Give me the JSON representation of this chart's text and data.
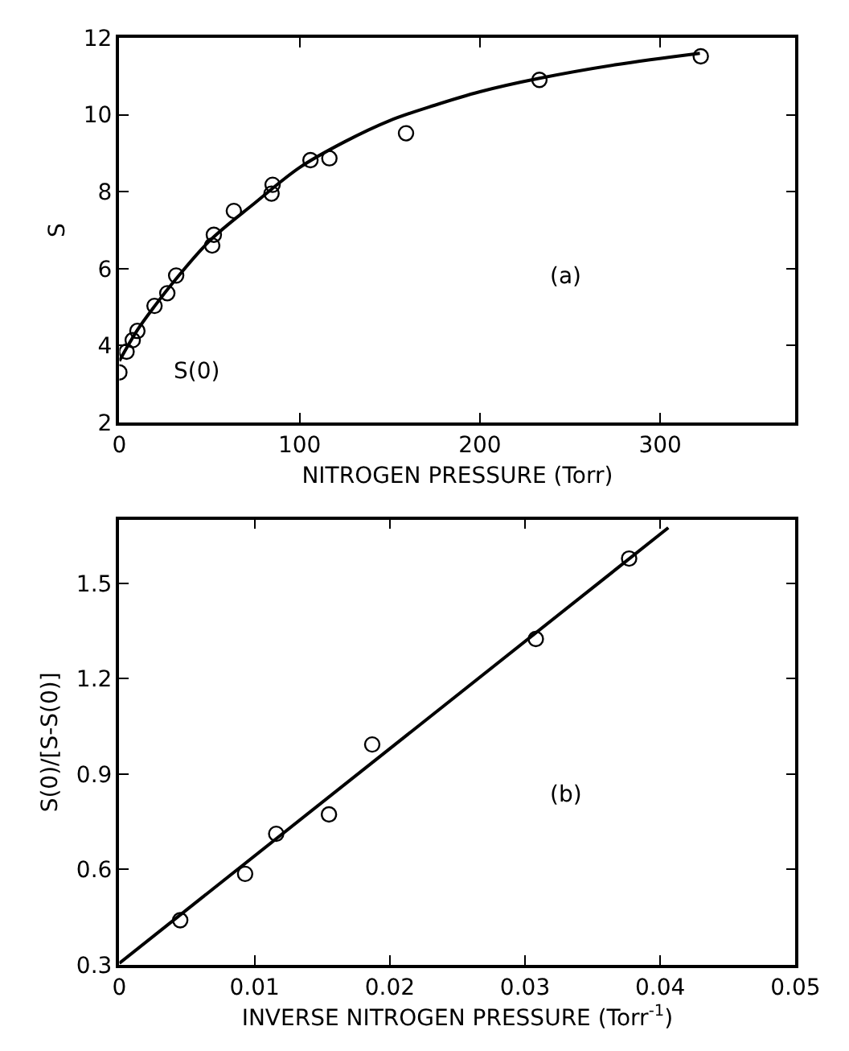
{
  "chart_data": [
    {
      "type": "scatter",
      "xlabel": "NITROGEN PRESSURE (Torr)",
      "ylabel": "S",
      "xlim": [
        0,
        375
      ],
      "ylim": [
        2,
        12
      ],
      "xticks": [
        0,
        100,
        200,
        300
      ],
      "yticks": [
        2,
        4,
        6,
        8,
        10,
        12
      ],
      "marker": "circle",
      "annotations": [
        {
          "text": "S(0)",
          "x": 0,
          "y": 3.3
        },
        "(a)"
      ],
      "series": [
        {
          "color": "#000000",
          "x": [
            0,
            4,
            7.4,
            10,
            19.5,
            26.6,
            31.5,
            51.5,
            52.4,
            63.5,
            84.4,
            85,
            106,
            116.5,
            159,
            233,
            322.5
          ],
          "values": [
            3.3,
            3.84,
            4.14,
            4.38,
            5.03,
            5.36,
            5.82,
            6.6,
            6.88,
            7.5,
            7.95,
            8.18,
            8.82,
            8.87,
            9.52,
            10.91,
            11.52
          ]
        },
        {
          "type": "line",
          "color": "#000000",
          "marker": "none",
          "line_style": "solid",
          "x": [
            0,
            10,
            20,
            30,
            50,
            75,
            100,
            125,
            150,
            175,
            200,
            233,
            275,
            322
          ],
          "values": [
            3.6,
            4.4,
            5.05,
            5.65,
            6.72,
            7.7,
            8.63,
            9.3,
            9.85,
            10.25,
            10.6,
            10.95,
            11.3,
            11.6
          ]
        }
      ]
    },
    {
      "type": "scatter",
      "xlabel": "INVERSE NITROGEN PRESSURE (Torr$^{-1}$)",
      "ylabel": "S(0)/[S-S(0)]",
      "xlim": [
        0,
        0.05
      ],
      "ylim": [
        0.3,
        1.7
      ],
      "xticks": [
        {
          "value": 0,
          "label": "0"
        },
        0.01,
        0.02,
        0.03,
        0.04,
        0.05
      ],
      "yticks": [
        0.3,
        0.6,
        0.9,
        1.2,
        1.5
      ],
      "marker": "circle",
      "annotations": [
        "(b)"
      ],
      "series": [
        {
          "color": "#000000",
          "x": [
            0.0045,
            0.0093,
            0.0116,
            0.0155,
            0.0187,
            0.0308,
            0.0377
          ],
          "values": [
            0.44,
            0.586,
            0.712,
            0.773,
            0.993,
            1.325,
            1.578
          ]
        },
        {
          "type": "line",
          "color": "#000000",
          "marker": "none",
          "line_style": "solid",
          "x": [
            0,
            0.0406
          ],
          "values": [
            0.305,
            1.675
          ]
        }
      ]
    }
  ]
}
